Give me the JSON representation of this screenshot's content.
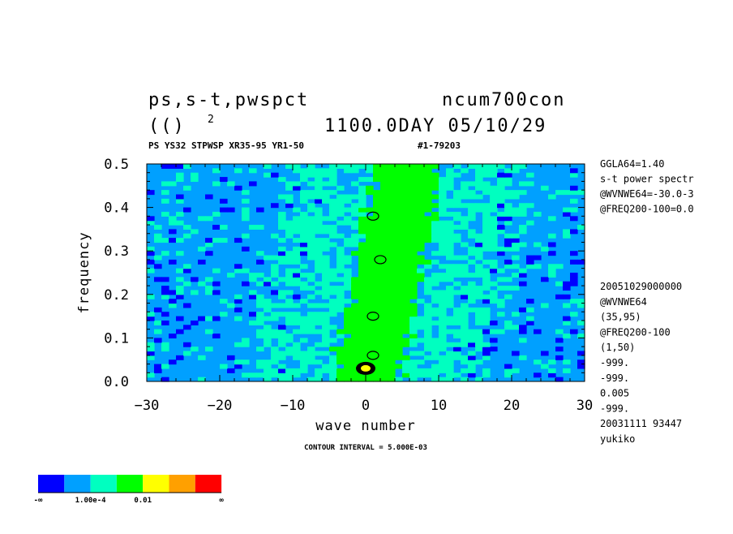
{
  "header": {
    "left_line1": "ps,s-t,pwspct",
    "right_line1": "ncum700con",
    "left_line2": "(()",
    "left_line2_sup": "2",
    "right_line2": "1100.0DAY 05/10/29",
    "subtitle": "PS YS32 STPWSP XR35-95 YR1-50",
    "subtitle_id": "#1-79203"
  },
  "side_info_top": [
    "GGLA64=1.40",
    "s-t power spectr",
    "@WVNWE64=-30.0-3",
    "@FREQ200-100=0.0"
  ],
  "side_info_bottom": [
    "20051029000000",
    "@WVNWE64",
    "(35,95)",
    "@FREQ200-100",
    "(1,50)",
    "-999.",
    "-999.",
    "0.005",
    "-999.",
    "20031111  93447",
    "yukiko"
  ],
  "contour_note": "CONTOUR INTERVAL = 5.000E-03",
  "colorbar": {
    "colors": [
      "#0000ff",
      "#00a0ff",
      "#00ffc0",
      "#00ff00",
      "#ffff00",
      "#ffa000",
      "#ff0000"
    ],
    "labels": [
      "-∞",
      "1.00e-4",
      "0.01",
      "∞"
    ]
  },
  "chart_data": {
    "type": "heatmap",
    "xlabel": "wave number",
    "ylabel": "frequency",
    "xlim": [
      -30,
      30
    ],
    "ylim": [
      0,
      0.5
    ],
    "x_ticks": [
      "−30",
      "−20",
      "−10",
      "0",
      "10",
      "20",
      "30"
    ],
    "y_ticks": [
      "0.0",
      "0.1",
      "0.2",
      "0.3",
      "0.4",
      "0.5"
    ],
    "description_levels": [
      "below 1.00e-4",
      "1.00e-4 to 0.01",
      "0.01 and above"
    ],
    "ridge": {
      "wave_number_at_freq_0": 0,
      "wave_number_at_freq_0_5": 6
    },
    "peaks": [
      {
        "x": 0,
        "y": 0.03,
        "level": "yellow"
      },
      {
        "x": 1,
        "y": 0.06,
        "level": "green"
      },
      {
        "x": 1,
        "y": 0.15,
        "level": "green"
      },
      {
        "x": 2,
        "y": 0.28,
        "level": "green"
      },
      {
        "x": 1,
        "y": 0.38,
        "level": "green"
      }
    ]
  }
}
